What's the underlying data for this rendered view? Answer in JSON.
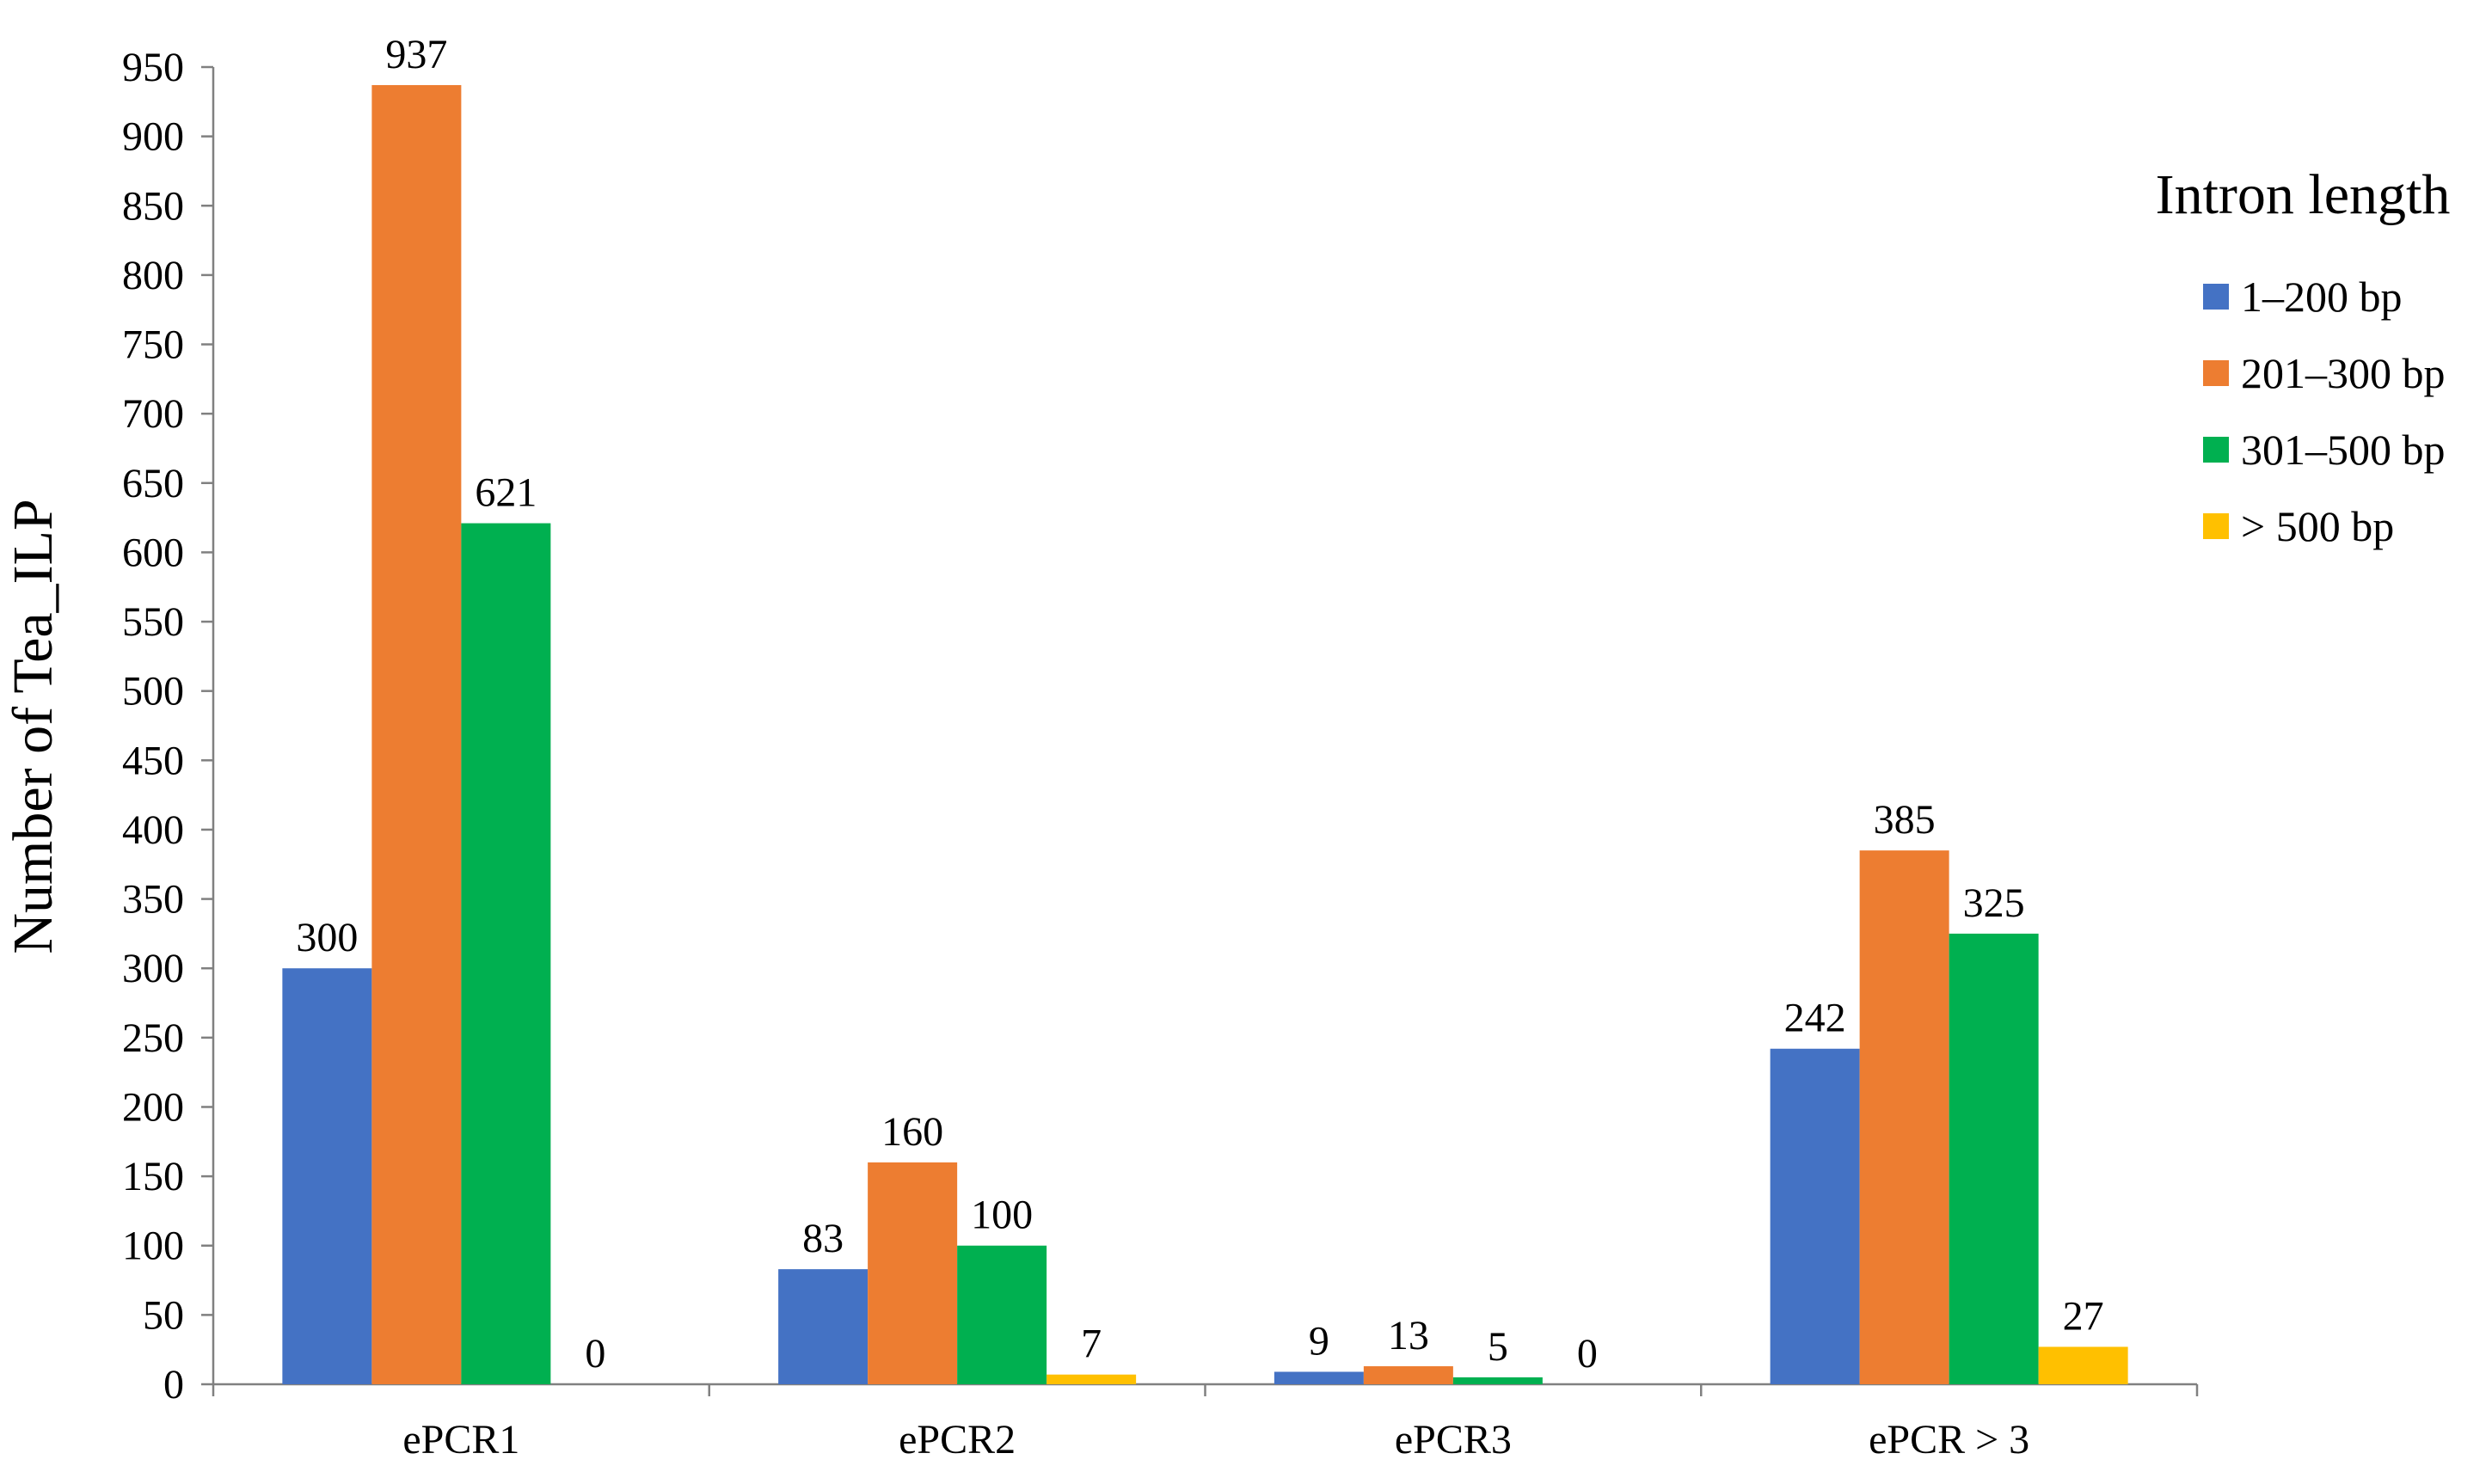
{
  "chart_data": {
    "type": "bar",
    "title": "",
    "xlabel": "",
    "ylabel": "Number of  Tea_ILP",
    "ylim": [
      0,
      950
    ],
    "yticks": [
      0,
      50,
      100,
      150,
      200,
      250,
      300,
      350,
      400,
      450,
      500,
      550,
      600,
      650,
      700,
      750,
      800,
      850,
      900,
      950
    ],
    "grid": false,
    "categories": [
      "ePCR1",
      "ePCR2",
      "ePCR3",
      "ePCR > 3"
    ],
    "legend": {
      "title": "Intron length",
      "placement": "right"
    },
    "series": [
      {
        "name": "1–200 bp",
        "color": "#4472C4",
        "values": [
          300,
          83,
          9,
          242
        ]
      },
      {
        "name": "201–300 bp",
        "color": "#ED7D31",
        "values": [
          937,
          160,
          13,
          385
        ]
      },
      {
        "name": "301–500 bp",
        "color": "#00B050",
        "values": [
          621,
          100,
          5,
          325
        ]
      },
      {
        "name": "> 500 bp",
        "color": "#FFC000",
        "values": [
          0,
          7,
          0,
          27
        ]
      }
    ],
    "data_labels": true
  }
}
